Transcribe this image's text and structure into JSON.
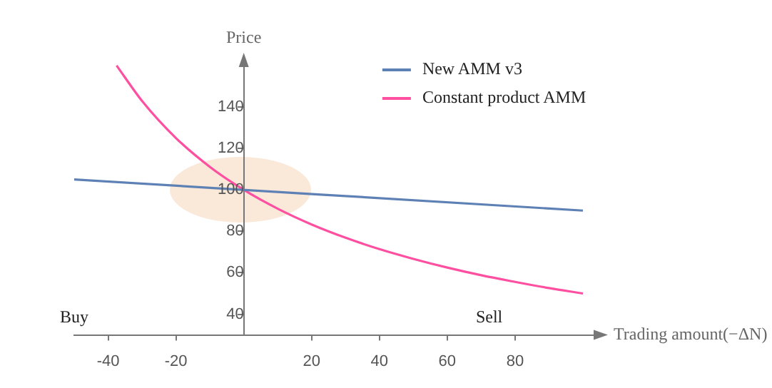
{
  "chart_data": {
    "type": "line",
    "xlabel": "Trading amount(−ΔN)",
    "ylabel": "Price",
    "series": [
      {
        "name": "New AMM v3",
        "color": "#5e81b5",
        "x": [
          -50,
          100
        ],
        "values": [
          105,
          90
        ]
      },
      {
        "name": "Constant product AMM",
        "color": "#ff4fa0",
        "x": [
          -37.5,
          -30,
          -20,
          -10,
          0,
          10,
          20,
          30,
          40,
          50,
          60,
          70,
          80,
          90,
          100
        ],
        "values": [
          160,
          142.9,
          125,
          111.1,
          100,
          90.9,
          83.3,
          76.9,
          71.4,
          66.7,
          62.5,
          58.8,
          55.6,
          52.6,
          50
        ]
      }
    ],
    "xlim": [
      -50,
      104
    ],
    "ylim": [
      30,
      162
    ],
    "xticks": [
      -40,
      -20,
      20,
      40,
      60,
      80
    ],
    "yticks": [
      40,
      60,
      80,
      100,
      120,
      140
    ],
    "annotations": [
      "Buy",
      "Sell"
    ],
    "legend": "top right",
    "grid": false,
    "marker": "none",
    "line_style": "solid"
  }
}
